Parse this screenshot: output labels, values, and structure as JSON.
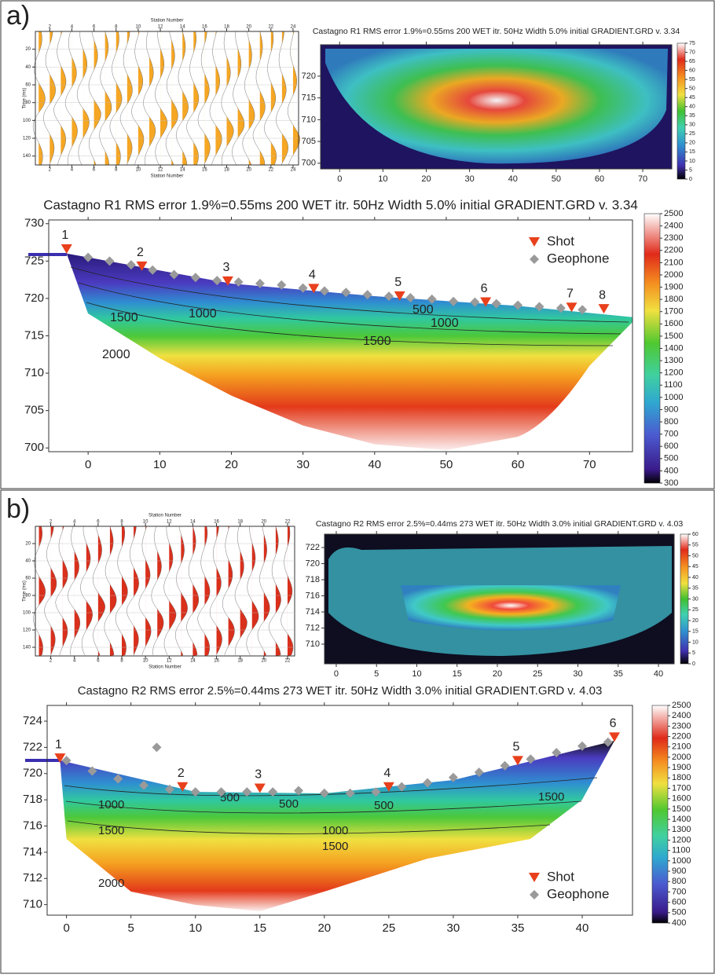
{
  "panels": [
    "a)",
    "b)"
  ],
  "chart_data": [
    {
      "type": "seismogram",
      "xlabel": "Station Number",
      "ylabel": "Time (ms)",
      "color": "#f5a623",
      "xlim": [
        0.7,
        24.5
      ],
      "ylim": [
        0,
        150
      ],
      "xticks": [
        2,
        4,
        6,
        8,
        10,
        12,
        14,
        16,
        18,
        20,
        22,
        24
      ],
      "yticks": [
        20,
        40,
        60,
        80,
        100,
        120,
        140
      ]
    },
    {
      "type": "heatmap",
      "title": "Castagno R1 RMS error 1.9%=0.55ms 200 WET itr. 50Hz Width 5.0% initial GRADIENT.GRD v. 3.34",
      "xlim": [
        -4.4,
        76.7
      ],
      "ylim": [
        698.7,
        727.2
      ],
      "xticks": [
        0,
        10,
        20,
        30,
        40,
        50,
        60,
        70
      ],
      "yticks": [
        700,
        705,
        710,
        715,
        720
      ],
      "colorbar_ticks": [
        0,
        5,
        10,
        15,
        20,
        25,
        30,
        35,
        40,
        45,
        50,
        55,
        60,
        65,
        70,
        75
      ]
    },
    {
      "type": "scatter",
      "title": "Castagno R1 RMS error 1.9%=0.55ms 200 WET itr. 50Hz Width 5.0% initial GRADIENT.GRD v. 3.34",
      "xlim": [
        -5.5,
        76
      ],
      "ylim": [
        699.5,
        730.5
      ],
      "xticks": [
        0,
        10,
        20,
        30,
        40,
        50,
        60,
        70
      ],
      "yticks": [
        700,
        705,
        710,
        715,
        720,
        725,
        730
      ],
      "colorbar_ticks": [
        300,
        400,
        500,
        600,
        700,
        800,
        900,
        1000,
        1100,
        1200,
        1300,
        1400,
        1500,
        1600,
        1700,
        1800,
        1900,
        2000,
        2100,
        2200,
        2300,
        2400,
        2500
      ],
      "legend": "upper right",
      "annotations": [
        "1000",
        "1500",
        "2000",
        "1500",
        "500",
        "1000"
      ],
      "series": [
        {
          "name": "Shot",
          "color": "#e8401c",
          "marker": "triangle",
          "x": [
            -3,
            7.5,
            19.5,
            31.5,
            43.5,
            55.5,
            67.5,
            72
          ],
          "values": [
            726.3,
            724,
            722,
            721,
            720,
            719.2,
            718.5,
            718.3
          ],
          "labels": [
            "1",
            "2",
            "3",
            "4",
            "5",
            "6",
            "7",
            "8"
          ]
        },
        {
          "name": "Geophone",
          "color": "#9a9a9a",
          "marker": "diamond",
          "x": [
            0,
            3,
            6,
            9,
            12,
            15,
            18,
            21,
            24,
            27,
            30,
            33,
            36,
            39,
            42,
            45,
            48,
            51,
            54,
            57,
            60,
            63,
            66,
            69
          ],
          "values": [
            725.5,
            725,
            724.5,
            723.8,
            723.2,
            722.8,
            722.4,
            722.2,
            722,
            721.8,
            721.4,
            721,
            720.8,
            720.5,
            720.3,
            720.1,
            719.9,
            719.6,
            719.5,
            719.3,
            719.1,
            718.9,
            718.7,
            718.5
          ]
        }
      ]
    },
    {
      "type": "seismogram",
      "xlabel": "Station Number",
      "ylabel": "Time (ms)",
      "color": "#d9301c",
      "xlim": [
        0.7,
        22.6
      ],
      "ylim": [
        0,
        150
      ],
      "xticks": [
        2,
        4,
        6,
        8,
        10,
        12,
        14,
        16,
        18,
        20,
        22
      ],
      "yticks": [
        20,
        40,
        60,
        80,
        100,
        120,
        140
      ]
    },
    {
      "type": "heatmap",
      "title": "Castagno R2 RMS error 2.5%=0.44ms 273 WET itr. 50Hz Width 3.0% initial GRADIENT.GRD v. 4.03",
      "xlim": [
        -1.46,
        41.95
      ],
      "ylim": [
        707.56,
        723.66
      ],
      "xticks": [
        0,
        5,
        10,
        15,
        20,
        25,
        30,
        35,
        40
      ],
      "yticks": [
        710,
        712,
        714,
        716,
        718,
        720,
        722
      ],
      "colorbar_ticks": [
        0,
        5,
        10,
        15,
        20,
        25,
        30,
        35,
        40,
        45,
        50,
        55,
        60
      ]
    },
    {
      "type": "scatter",
      "title": "Castagno R2 RMS error 2.5%=0.44ms 273 WET itr. 50Hz Width 3.0% initial GRADIENT.GRD v. 4.03",
      "xlim": [
        -1.5,
        43.9
      ],
      "ylim": [
        709.2,
        725.2
      ],
      "xticks": [
        0,
        5,
        10,
        15,
        20,
        25,
        30,
        35,
        40
      ],
      "yticks": [
        710,
        712,
        714,
        716,
        718,
        720,
        722,
        724
      ],
      "colorbar_ticks": [
        400,
        500,
        600,
        700,
        800,
        900,
        1000,
        1100,
        1200,
        1300,
        1400,
        1500,
        1600,
        1700,
        1800,
        1900,
        2000,
        2100,
        2200,
        2300,
        2400,
        2500
      ],
      "legend": "lower right",
      "annotations": [
        "1000",
        "1500",
        "2000",
        "500",
        "500",
        "500",
        "1000",
        "1500",
        "1500"
      ],
      "series": [
        {
          "name": "Shot",
          "color": "#e8401c",
          "marker": "triangle",
          "x": [
            -0.5,
            9,
            15,
            25,
            35,
            42.5
          ],
          "values": [
            721,
            718.8,
            718.7,
            718.8,
            720.8,
            722.6
          ],
          "labels": [
            "1",
            "2",
            "3",
            "4",
            "5",
            "6"
          ]
        },
        {
          "name": "Geophone",
          "color": "#9a9a9a",
          "marker": "diamond",
          "x": [
            0,
            2,
            4,
            6,
            7,
            8,
            10,
            12,
            14,
            16,
            18,
            20,
            22,
            24,
            26,
            28,
            30,
            32,
            34,
            36,
            38,
            40,
            42
          ],
          "values": [
            721,
            720.2,
            719.6,
            719.1,
            722,
            718.8,
            718.6,
            718.6,
            718.6,
            718.6,
            718.7,
            718.5,
            718.5,
            718.6,
            719,
            719.3,
            719.7,
            720.1,
            720.6,
            721.1,
            721.6,
            722.1,
            722.4
          ]
        }
      ]
    }
  ]
}
